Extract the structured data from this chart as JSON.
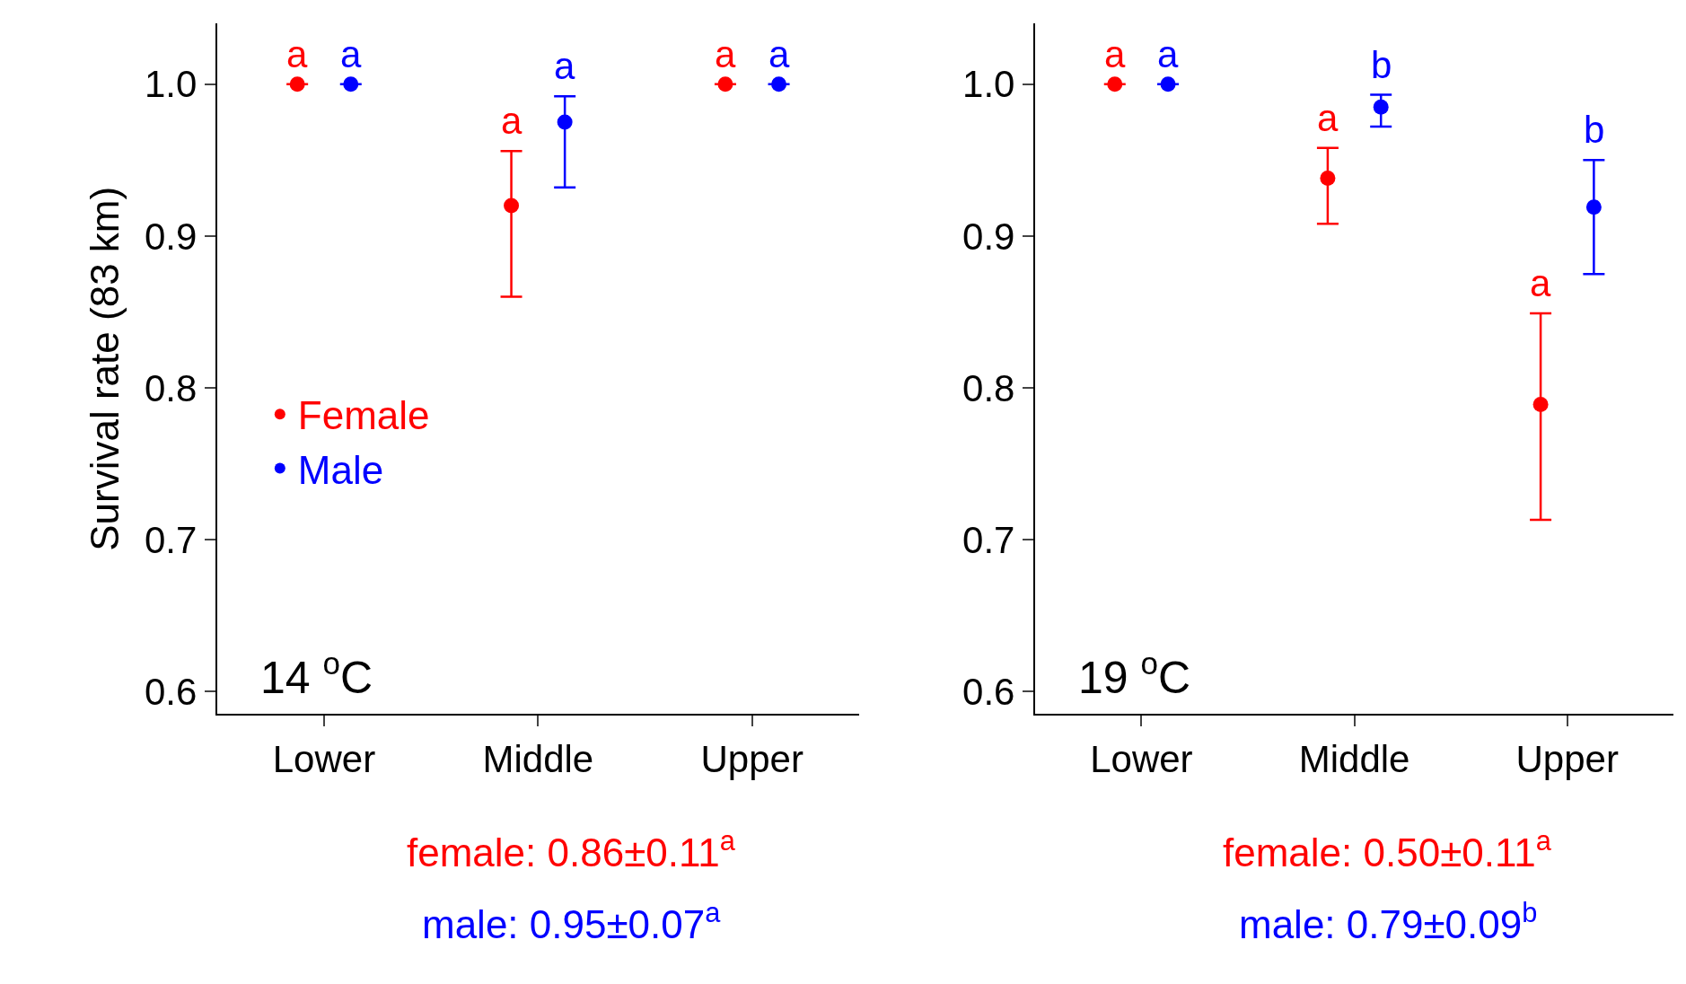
{
  "chart_data": [
    {
      "type": "scatter",
      "title": "14 $^{o}$C",
      "ylabel": "Survival rate (83 km)",
      "categories": [
        "Lower",
        "Middle",
        "Upper"
      ],
      "ylim": [
        0.585,
        1.04
      ],
      "yticks": [
        0.6,
        0.7,
        0.8,
        0.9,
        {
          "value": 1,
          "label": "1.0"
        }
      ],
      "legend": "left",
      "marker": "circle",
      "series": [
        {
          "name": "Female",
          "color": "#ff0000",
          "values": [
            1.0,
            0.92,
            1.0
          ],
          "errors": [
            null,
            [
              0.86,
              0.956
            ],
            null
          ],
          "value_labels": [
            "a",
            "a",
            "a"
          ]
        },
        {
          "name": "Male",
          "color": "#0000ff",
          "values": [
            1.0,
            0.975,
            1.0
          ],
          "errors": [
            null,
            [
              0.932,
              0.992
            ],
            null
          ],
          "value_labels": [
            "a",
            "a",
            "a"
          ]
        }
      ],
      "annotations": [
        "female: 0.86±0.11$^{a}$",
        "male: 0.95±0.07$^{a}$"
      ]
    },
    {
      "type": "scatter",
      "title": "19 $^{o}$C",
      "categories": [
        "Lower",
        "Middle",
        "Upper"
      ],
      "ylim": [
        0.585,
        1.04
      ],
      "yticks": [
        0.6,
        0.7,
        0.8,
        0.9,
        {
          "value": 1,
          "label": "1.0"
        }
      ],
      "marker": "circle",
      "series": [
        {
          "color": "#ff0000",
          "values": [
            1.0,
            0.938,
            0.789
          ],
          "errors": [
            null,
            [
              0.908,
              0.958
            ],
            [
              0.713,
              0.849
            ]
          ],
          "value_labels": [
            "a",
            "a",
            "a"
          ]
        },
        {
          "color": "#0000ff",
          "values": [
            1.0,
            0.985,
            0.919
          ],
          "errors": [
            null,
            [
              0.972,
              0.993
            ],
            [
              0.875,
              0.95
            ]
          ],
          "value_labels": [
            "a",
            "b",
            "b"
          ]
        }
      ],
      "annotations": [
        "female: 0.50±0.11$^{a}$",
        "male: 0.79±0.09$^{b}$"
      ]
    }
  ]
}
